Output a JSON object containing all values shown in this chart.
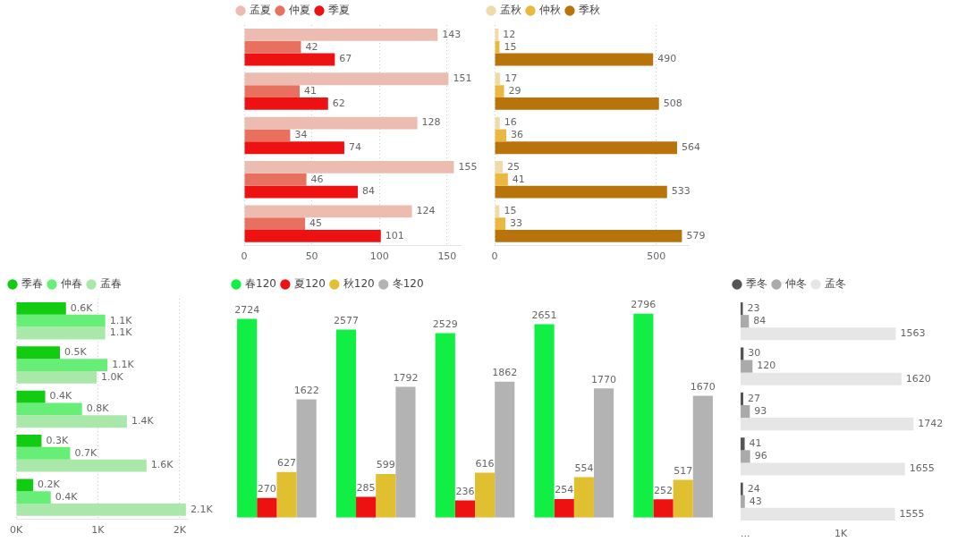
{
  "chart_data": [
    {
      "type": "bar",
      "orientation": "horizontal",
      "categories": [
        null,
        null,
        null,
        null,
        null
      ],
      "xlim": [
        0,
        160
      ],
      "xticks": [
        0,
        50,
        100,
        150
      ],
      "grid": "x",
      "legend": "top left",
      "data_labels": true,
      "series": [
        {
          "name": "孟夏",
          "color": "#ecbcb0",
          "values": [
            143,
            151,
            128,
            155,
            124
          ]
        },
        {
          "name": "仲夏",
          "color": "#e8705e",
          "values": [
            42,
            41,
            34,
            46,
            45
          ]
        },
        {
          "name": "季夏",
          "color": "#ee1111",
          "values": [
            67,
            62,
            74,
            84,
            101
          ]
        }
      ]
    },
    {
      "type": "bar",
      "orientation": "horizontal",
      "categories": [
        null,
        null,
        null,
        null,
        null
      ],
      "xlim": [
        0,
        600
      ],
      "xticks": [
        0,
        500
      ],
      "grid": "x",
      "legend": "top left",
      "data_labels": true,
      "series": [
        {
          "name": "孟秋",
          "color": "#eedca8",
          "values": [
            12,
            17,
            16,
            25,
            15
          ]
        },
        {
          "name": "仲秋",
          "color": "#eab840",
          "values": [
            15,
            29,
            36,
            41,
            33
          ]
        },
        {
          "name": "季秋",
          "color": "#b8740a",
          "values": [
            490,
            508,
            564,
            533,
            579
          ]
        }
      ]
    },
    {
      "type": "bar",
      "orientation": "horizontal",
      "categories": [
        null,
        null,
        null,
        null,
        null
      ],
      "xlim": [
        0,
        2100
      ],
      "xticks": [
        {
          "value": 0,
          "label": "0K"
        },
        {
          "value": 1000,
          "label": "1K"
        },
        {
          "value": 2000,
          "label": "2K"
        }
      ],
      "grid": "x",
      "legend": "top left",
      "series": [
        {
          "name": "季春",
          "color": "#11cc11",
          "values": [
            610,
            536,
            356,
            311,
            209
          ],
          "value_labels": [
            "0.6K",
            "0.5K",
            "0.4K",
            "0.3K",
            "0.2K"
          ]
        },
        {
          "name": "仲春",
          "color": "#66ee77",
          "values": [
            1090,
            1117,
            806,
            661,
            424
          ],
          "value_labels": [
            "1.1K",
            "1.1K",
            "0.8K",
            "0.7K",
            "0.4K"
          ]
        },
        {
          "name": "孟春",
          "color": "#aae8aa",
          "values": [
            1090,
            985,
            1355,
            1595,
            2077
          ],
          "value_labels": [
            "1.1K",
            "1.0K",
            "1.4K",
            "1.6K",
            "2.1K"
          ]
        }
      ]
    },
    {
      "type": "bar",
      "categories": [
        null,
        null,
        null,
        null,
        null
      ],
      "legend": "top left",
      "data_labels": true,
      "series": [
        {
          "name": "春120",
          "color": "#11ee44",
          "values": [
            2724,
            2577,
            2529,
            2651,
            2796
          ]
        },
        {
          "name": "夏120",
          "color": "#ee1111",
          "values": [
            270,
            285,
            236,
            254,
            252
          ]
        },
        {
          "name": "秋120",
          "color": "#e0c030",
          "values": [
            627,
            599,
            616,
            554,
            517
          ]
        },
        {
          "name": "冬120",
          "color": "#b3b3b3",
          "values": [
            1622,
            1792,
            1862,
            1770,
            1670
          ]
        }
      ]
    },
    {
      "type": "bar",
      "orientation": "horizontal",
      "categories": [
        null,
        null,
        null,
        null,
        null
      ],
      "tick_labels": "y",
      "annotations": [
        "...",
        "1K"
      ],
      "legend": "top left",
      "data_labels": true,
      "series": [
        {
          "name": "季冬",
          "color": "#555555",
          "values": [
            23,
            30,
            27,
            41,
            24
          ]
        },
        {
          "name": "仲冬",
          "color": "#aaaaaa",
          "values": [
            84,
            120,
            93,
            96,
            43
          ]
        },
        {
          "name": "孟冬",
          "color": "#e6e6e6",
          "values": [
            1563,
            1620,
            1742,
            1655,
            1555
          ]
        }
      ]
    }
  ]
}
